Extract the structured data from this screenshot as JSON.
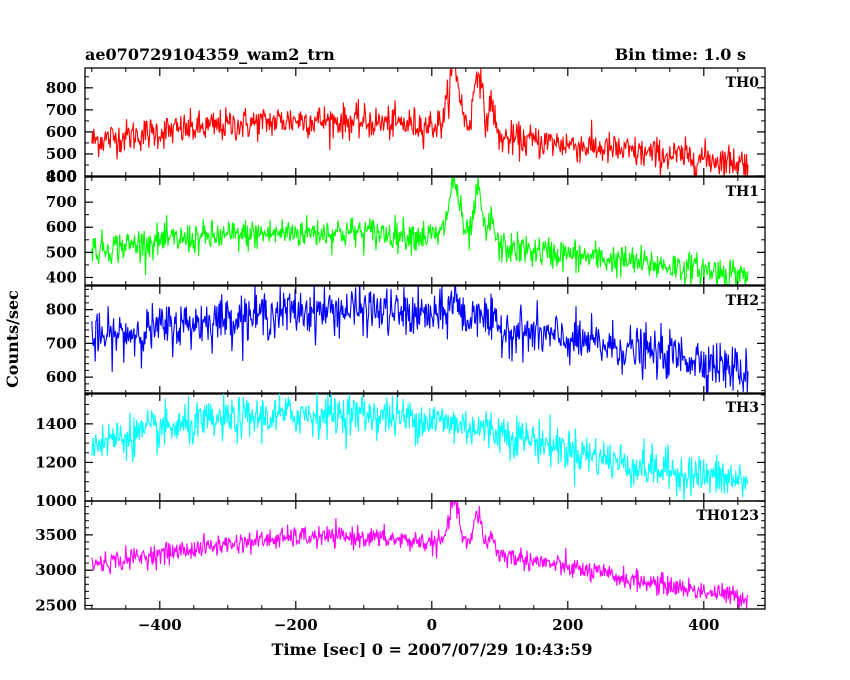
{
  "chart_data": {
    "type": "line",
    "title": "ae070729104359_wam2_trn",
    "bin_time_label": "Bin time: 1.0 s",
    "xlabel": "Time [sec] 0 = 2007/07/29 10:43:59",
    "ylabel": "Counts/sec",
    "xlim": [
      -510,
      490
    ],
    "x_ticks": [
      -400,
      -200,
      0,
      200,
      400
    ],
    "x_tick_labels": [
      "−400",
      "−200",
      "0",
      "200",
      "400"
    ],
    "x_start": -500,
    "x_end": 465,
    "grid": false,
    "panels": [
      {
        "name": "TH0",
        "color": "#ff0000",
        "ylim": [
          400,
          890
        ],
        "y_ticks": [
          400,
          500,
          600,
          700,
          800
        ],
        "noise": 38,
        "trend": [
          [
            -500,
            560
          ],
          [
            -400,
            600
          ],
          [
            -300,
            630
          ],
          [
            -200,
            655
          ],
          [
            -100,
            645
          ],
          [
            0,
            630
          ],
          [
            30,
            630
          ],
          [
            100,
            570
          ],
          [
            200,
            545
          ],
          [
            300,
            505
          ],
          [
            400,
            480
          ],
          [
            465,
            460
          ]
        ],
        "flares": [
          [
            33,
            260,
            8
          ],
          [
            68,
            290,
            6
          ],
          [
            88,
            160,
            4
          ]
        ]
      },
      {
        "name": "TH1",
        "color": "#00ff00",
        "ylim": [
          370,
          800
        ],
        "y_ticks": [
          400,
          500,
          600,
          700,
          800
        ],
        "noise": 32,
        "trend": [
          [
            -500,
            510
          ],
          [
            -400,
            545
          ],
          [
            -300,
            565
          ],
          [
            -200,
            580
          ],
          [
            -100,
            580
          ],
          [
            0,
            565
          ],
          [
            30,
            560
          ],
          [
            100,
            520
          ],
          [
            200,
            490
          ],
          [
            300,
            460
          ],
          [
            400,
            430
          ],
          [
            465,
            410
          ]
        ],
        "flares": [
          [
            33,
            220,
            8
          ],
          [
            68,
            200,
            6
          ],
          [
            88,
            110,
            4
          ]
        ]
      },
      {
        "name": "TH2",
        "color": "#0000ff",
        "ylim": [
          550,
          870
        ],
        "y_ticks": [
          600,
          700,
          800
        ],
        "noise": 35,
        "trend": [
          [
            -500,
            710
          ],
          [
            -400,
            745
          ],
          [
            -300,
            775
          ],
          [
            -200,
            795
          ],
          [
            -100,
            800
          ],
          [
            0,
            780
          ],
          [
            30,
            780
          ],
          [
            100,
            745
          ],
          [
            200,
            710
          ],
          [
            300,
            680
          ],
          [
            400,
            650
          ],
          [
            465,
            610
          ]
        ],
        "flares": [
          [
            33,
            60,
            6
          ],
          [
            70,
            50,
            6
          ]
        ]
      },
      {
        "name": "TH3",
        "color": "#00ffff",
        "ylim": [
          1000,
          1560
        ],
        "y_ticks": [
          1000,
          1200,
          1400
        ],
        "noise": 55,
        "trend": [
          [
            -500,
            1300
          ],
          [
            -400,
            1370
          ],
          [
            -300,
            1420
          ],
          [
            -200,
            1450
          ],
          [
            -100,
            1450
          ],
          [
            0,
            1420
          ],
          [
            100,
            1360
          ],
          [
            200,
            1270
          ],
          [
            300,
            1180
          ],
          [
            400,
            1130
          ],
          [
            465,
            1100
          ]
        ],
        "flares": []
      },
      {
        "name": "TH0123",
        "color": "#ff00ff",
        "ylim": [
          2450,
          3980
        ],
        "y_ticks": [
          2500,
          3000,
          3500
        ],
        "noise": 75,
        "trend": [
          [
            -500,
            3080
          ],
          [
            -400,
            3230
          ],
          [
            -300,
            3370
          ],
          [
            -200,
            3470
          ],
          [
            -100,
            3470
          ],
          [
            0,
            3390
          ],
          [
            30,
            3380
          ],
          [
            100,
            3220
          ],
          [
            200,
            3040
          ],
          [
            300,
            2850
          ],
          [
            400,
            2700
          ],
          [
            465,
            2600
          ]
        ],
        "flares": [
          [
            33,
            620,
            7
          ],
          [
            68,
            520,
            6
          ],
          [
            88,
            250,
            4
          ]
        ]
      }
    ]
  }
}
